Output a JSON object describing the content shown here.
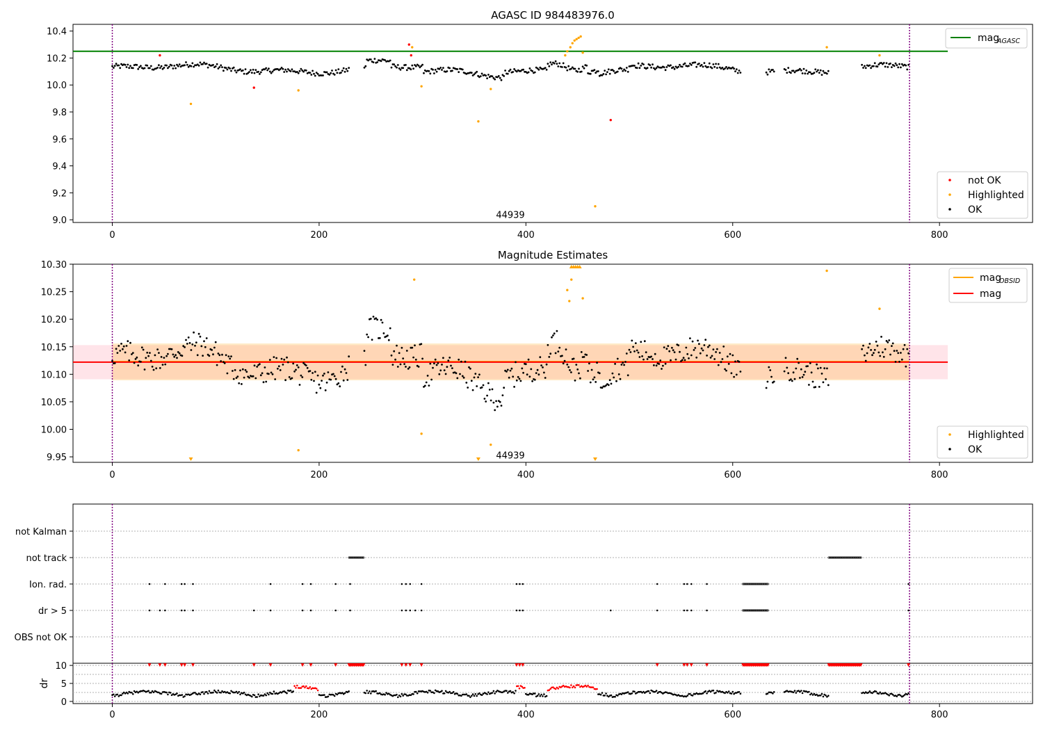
{
  "figure": {
    "panel1_title": "AGASC ID 984483976.0",
    "panel2_title": "Magnitude Estimates",
    "obsid_label": "44939"
  },
  "chart_data": [
    {
      "type": "scatter",
      "title": "AGASC ID 984483976.0",
      "xlabel": "",
      "ylabel": "",
      "xlim": [
        -38,
        890
      ],
      "ylim": [
        8.98,
        10.45
      ],
      "xticks": [
        0,
        200,
        400,
        600,
        800
      ],
      "yticks": [
        9.0,
        9.2,
        9.4,
        9.6,
        9.8,
        10.0,
        10.2,
        10.4
      ],
      "grid": false,
      "legend_lines": [
        {
          "name": "mag",
          "sub": "AGASC",
          "color": "#008000"
        }
      ],
      "legend_points": [
        {
          "name": "not OK",
          "color": "#ff0000"
        },
        {
          "name": "Highlighted",
          "color": "#ffa500"
        },
        {
          "name": "OK",
          "color": "#000000"
        }
      ],
      "hline": {
        "y": 10.25,
        "x_range": [
          -38,
          808
        ],
        "color": "#008000"
      },
      "vlines": [
        0,
        771
      ],
      "obsid_text": {
        "label": "44939",
        "x": 385,
        "y": 9.04
      },
      "series": [
        {
          "name": "OK",
          "color": "#000000",
          "gen": "ok1"
        },
        {
          "name": "Highlighted",
          "color": "#ffa500",
          "x": [
            76,
            180,
            290,
            299,
            354,
            366,
            438,
            440,
            443,
            445,
            447,
            449,
            451,
            453,
            455,
            467,
            691,
            742
          ],
          "y": [
            9.86,
            9.96,
            10.28,
            9.99,
            9.73,
            9.97,
            10.22,
            10.25,
            10.28,
            10.31,
            10.33,
            10.34,
            10.35,
            10.36,
            10.24,
            9.1,
            10.28,
            10.22
          ]
        },
        {
          "name": "not OK",
          "color": "#ff0000",
          "x": [
            46,
            137,
            287,
            289,
            482
          ],
          "y": [
            10.22,
            9.98,
            10.3,
            10.22,
            9.74
          ]
        }
      ]
    },
    {
      "type": "scatter",
      "title": "Magnitude Estimates",
      "xlabel": "",
      "ylabel": "",
      "xlim": [
        -38,
        890
      ],
      "ylim": [
        9.94,
        10.3
      ],
      "xticks": [
        0,
        200,
        400,
        600,
        800
      ],
      "yticks": [
        9.95,
        10.0,
        10.05,
        10.1,
        10.15,
        10.2,
        10.25,
        10.3
      ],
      "grid": false,
      "legend_lines": [
        {
          "name": "mag",
          "sub": "OBSID",
          "color": "#ffa500"
        },
        {
          "name": "mag",
          "sub": "",
          "color": "#ff0000"
        }
      ],
      "legend_points": [
        {
          "name": "Highlighted",
          "color": "#ffa500"
        },
        {
          "name": "OK",
          "color": "#000000"
        }
      ],
      "bands": [
        {
          "y0": 10.091,
          "y1": 10.153,
          "x_range": [
            -38,
            808
          ],
          "color": "rgba(255,105,135,0.18)"
        },
        {
          "y0": 10.089,
          "y1": 10.156,
          "x_range": [
            0,
            771
          ],
          "color": "rgba(255,165,0,0.22)"
        }
      ],
      "hlines": [
        {
          "y": 10.123,
          "x_range": [
            0,
            771
          ],
          "color": "#ffa500"
        },
        {
          "y": 10.122,
          "x_range": [
            -38,
            808
          ],
          "color": "#ff0000"
        }
      ],
      "vlines": [
        0,
        771
      ],
      "obsid_text": {
        "label": "44939",
        "x": 385,
        "y": 9.953
      },
      "series": [
        {
          "name": "OK",
          "color": "#000000",
          "gen": "ok2"
        },
        {
          "name": "Highlighted",
          "color": "#ffa500",
          "x": [
            292,
            299,
            366,
            440,
            442,
            444,
            455,
            691,
            742,
            180
          ],
          "y": [
            10.272,
            9.992,
            9.972,
            10.253,
            10.233,
            10.272,
            10.238,
            10.288,
            10.219,
            9.962
          ]
        },
        {
          "name": "Highlighted (out of range)",
          "color": "#ffa500",
          "marker": "triangle",
          "x": [
            76,
            354,
            467,
            444,
            446,
            448,
            450,
            452
          ],
          "y": [
            "low",
            "low",
            "low",
            "high",
            "high",
            "high",
            "high",
            "high"
          ]
        }
      ]
    },
    {
      "type": "scatter",
      "title": "",
      "xlabel": "",
      "ylabel": "",
      "xlim": [
        -38,
        890
      ],
      "categories": [
        "not Kalman",
        "not track",
        "Ion. rad.",
        "dr > 5",
        "OBS not OK"
      ],
      "grid": true,
      "vlines": [
        0,
        771
      ],
      "series": [
        {
          "name": "not track",
          "ranges": [
            [
              229,
              243
            ],
            [
              693,
              724
            ]
          ]
        },
        {
          "name": "Ion. rad.",
          "points": [
            36,
            51,
            67,
            70,
            78,
            153,
            184,
            192,
            216,
            230,
            280,
            284,
            288,
            299,
            391,
            394,
            397,
            527,
            553,
            556,
            560,
            575,
            770
          ],
          "ranges": [
            [
              610,
              634
            ]
          ]
        },
        {
          "name": "dr > 5",
          "points": [
            36,
            46,
            51,
            67,
            70,
            78,
            137,
            153,
            184,
            192,
            216,
            230,
            280,
            284,
            288,
            293,
            299,
            391,
            394,
            397,
            482,
            527,
            553,
            556,
            560,
            575,
            770
          ],
          "ranges": [
            [
              610,
              634
            ]
          ]
        }
      ]
    },
    {
      "type": "scatter",
      "title": "",
      "xlabel": "",
      "ylabel": "dr",
      "xlim": [
        -38,
        890
      ],
      "ylim": [
        -0.6,
        10.6
      ],
      "yticks": [
        0,
        5,
        10
      ],
      "xticks": [
        0,
        200,
        400,
        600,
        800
      ],
      "grid": true,
      "vlines": [
        0,
        771
      ],
      "series": [
        {
          "name": "dr",
          "color": "#000000",
          "gen": "dr"
        },
        {
          "name": "dr > 5",
          "color": "#ff0000",
          "marker": "triangle",
          "y": 10,
          "points": [
            36,
            46,
            51,
            67,
            70,
            78,
            137,
            153,
            184,
            192,
            216,
            230,
            280,
            284,
            288,
            299,
            391,
            394,
            397,
            527,
            553,
            556,
            560,
            575,
            770
          ],
          "ranges": [
            [
              229,
              243
            ],
            [
              610,
              634
            ],
            [
              693,
              724
            ]
          ]
        }
      ]
    }
  ]
}
